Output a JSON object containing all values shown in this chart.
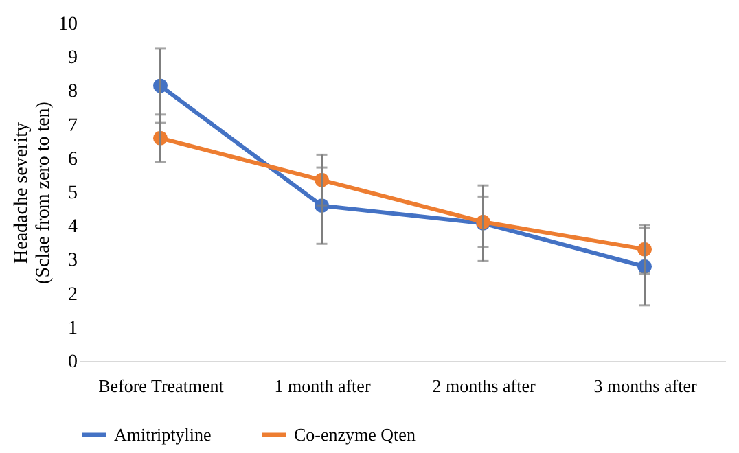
{
  "chart_data": {
    "type": "line",
    "ylabel": "Headache severity\n(Sclae from zero to ten)",
    "categories": [
      "Before Treatment",
      "1 month after",
      "2 months after",
      "3 months after"
    ],
    "series": [
      {
        "name": "Amitriptyline",
        "color": "#4472c4",
        "values": [
          8.15,
          4.6,
          4.08,
          2.8
        ],
        "errors": [
          1.1,
          1.13,
          1.12,
          1.15
        ]
      },
      {
        "name": "Co-enzyme Qten",
        "color": "#ed7d31",
        "values": [
          6.6,
          5.36,
          4.12,
          3.31
        ],
        "errors": [
          0.7,
          0.75,
          0.75,
          0.72
        ]
      }
    ],
    "ylim": [
      0,
      10
    ],
    "yticks": [
      0,
      1,
      2,
      3,
      4,
      5,
      6,
      7,
      8,
      9,
      10
    ],
    "grid": false,
    "legend": "bottom",
    "marker": "circle",
    "line_style": "solid"
  }
}
